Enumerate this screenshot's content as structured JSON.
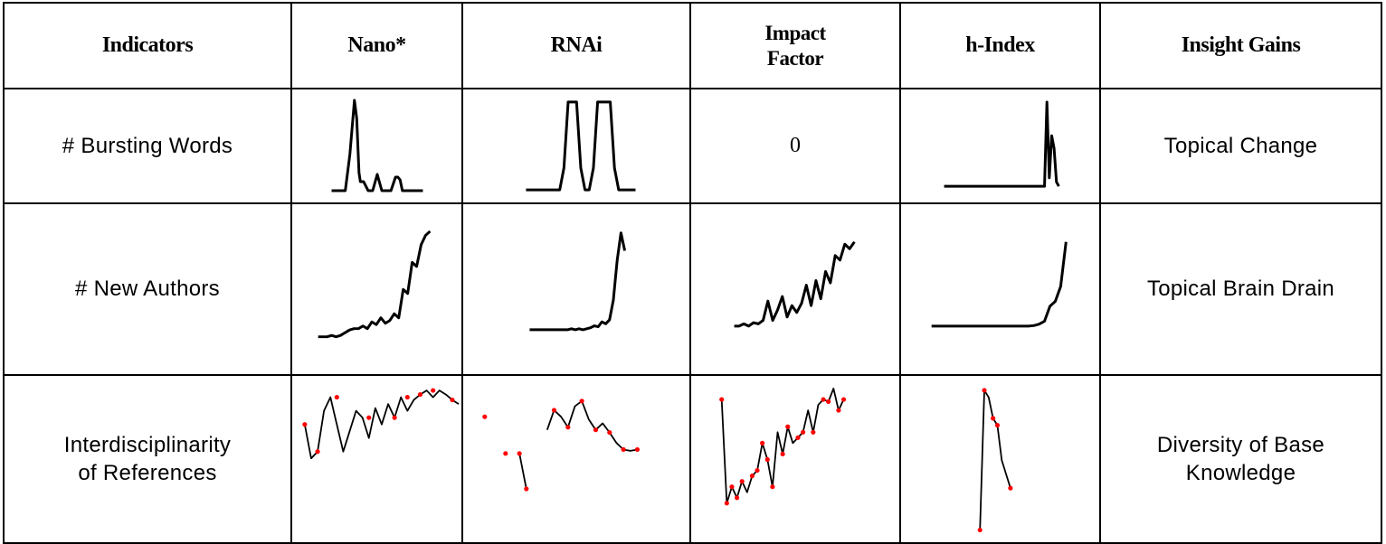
{
  "header": {
    "indicators": "Indicators",
    "nano": "Nano*",
    "rnai": "RNAi",
    "impact_line1": "Impact",
    "impact_line2": "Factor",
    "hindex": "h-Index",
    "insight": "Insight Gains"
  },
  "rows": {
    "bursting": {
      "label": "# Bursting Words",
      "impact_value": "0",
      "gain": "Topical Change"
    },
    "authors": {
      "label": "# New Authors",
      "gain": "Topical Brain Drain"
    },
    "refs": {
      "label_line1": "Interdisciplinarity",
      "label_line2": "of References",
      "gain_line1": "Diversity of Base",
      "gain_line2": "Knowledge"
    }
  },
  "colors": {
    "line": "#000000",
    "point": "#ff0000",
    "border": "#000000"
  },
  "sparklines": {
    "bursting_nano": {
      "x": [
        0,
        3,
        4,
        5,
        5.5,
        6,
        6.3,
        7,
        8,
        9,
        10,
        11,
        12,
        13,
        14,
        14.5,
        15,
        15.5,
        16,
        20
      ],
      "y": [
        0,
        0,
        40,
        100,
        80,
        20,
        10,
        10,
        0,
        0,
        18,
        0,
        0,
        0,
        15,
        15,
        12,
        0,
        0,
        0
      ]
    },
    "bursting_rnai": {
      "x": [
        0,
        8,
        9,
        10,
        11,
        12,
        13,
        14,
        15,
        16,
        17,
        18,
        19,
        20,
        21,
        22,
        23,
        26
      ],
      "y": [
        0,
        0,
        25,
        100,
        100,
        100,
        25,
        0,
        0,
        25,
        100,
        100,
        100,
        100,
        25,
        0,
        0,
        0
      ]
    },
    "bursting_hindex": {
      "x": [
        0,
        20,
        21,
        21.5,
        22,
        22.5,
        23,
        23.5,
        24
      ],
      "y": [
        0,
        0,
        0,
        100,
        10,
        60,
        45,
        5,
        0
      ]
    },
    "authors_nano": {
      "x": [
        0,
        1,
        2,
        3,
        4,
        5,
        6,
        7,
        8,
        9,
        10,
        11,
        12,
        13,
        14,
        15,
        16,
        17,
        18,
        19,
        20,
        21,
        22,
        23,
        24,
        25
      ],
      "y": [
        0,
        0,
        0,
        1,
        0,
        1,
        3,
        5,
        6,
        6,
        8,
        6,
        11,
        9,
        14,
        10,
        12,
        17,
        14,
        35,
        32,
        55,
        52,
        68,
        75,
        78
      ]
    },
    "authors_rnai": {
      "x": [
        0,
        1,
        2,
        3,
        4,
        5,
        6,
        7,
        8,
        9,
        10,
        11,
        12,
        13,
        14,
        15,
        16,
        17,
        18,
        19,
        20,
        21,
        22,
        23,
        24,
        25
      ],
      "y": [
        0,
        0,
        0,
        0,
        0,
        0,
        0,
        0,
        0,
        0,
        0,
        1,
        0,
        1,
        0,
        1,
        2,
        4,
        3,
        8,
        6,
        10,
        30,
        70,
        98,
        80
      ]
    },
    "authors_impact": {
      "x": [
        0,
        1,
        2,
        3,
        4,
        5,
        6,
        7,
        8,
        9,
        10,
        11,
        12,
        13,
        14,
        15,
        16,
        17,
        18,
        19,
        20,
        21,
        22,
        23,
        24,
        25
      ],
      "y": [
        0,
        0,
        2,
        0,
        3,
        2,
        5,
        22,
        5,
        14,
        26,
        8,
        18,
        12,
        20,
        36,
        18,
        40,
        24,
        48,
        38,
        62,
        58,
        72,
        68,
        74
      ]
    },
    "authors_hindex": {
      "x": [
        0,
        5,
        10,
        15,
        18,
        19,
        20,
        21,
        22,
        23,
        24,
        25
      ],
      "y": [
        0,
        0,
        0,
        0,
        0,
        0.5,
        2,
        5,
        20,
        25,
        40,
        85
      ]
    },
    "refs_nano": {
      "x": [
        0,
        1,
        2,
        3,
        4,
        5,
        6,
        7,
        8,
        9,
        10,
        11,
        12,
        13,
        14,
        15,
        16,
        17,
        18,
        19,
        20,
        21,
        22,
        23,
        24
      ],
      "y": [
        30,
        5,
        10,
        40,
        50,
        30,
        10,
        25,
        40,
        35,
        20,
        42,
        30,
        45,
        35,
        50,
        40,
        48,
        52,
        55,
        50,
        55,
        52,
        48,
        45
      ]
    },
    "refs_nano_points": {
      "x": [
        0,
        2,
        5,
        10,
        14,
        16,
        18,
        20,
        23
      ],
      "y": [
        30,
        10,
        50,
        35,
        35,
        50,
        52,
        55,
        48
      ]
    },
    "refs_rnai_segments": [
      {
        "x": [
          0
        ],
        "y": [
          50
        ]
      },
      {
        "x": [
          3
        ],
        "y": [
          22
        ]
      },
      {
        "x": [
          5,
          6
        ],
        "y": [
          22,
          -5
        ]
      },
      {
        "x": [
          9,
          10,
          11,
          12,
          13,
          14,
          15,
          16,
          17,
          18,
          19,
          20,
          21,
          22
        ],
        "y": [
          40,
          55,
          50,
          42,
          58,
          62,
          48,
          40,
          45,
          38,
          30,
          25,
          24,
          25
        ]
      }
    ],
    "refs_rnai_points": {
      "x": [
        0,
        3,
        5,
        6,
        10,
        12,
        14,
        16,
        18,
        20,
        22
      ],
      "y": [
        50,
        22,
        22,
        -5,
        55,
        42,
        62,
        40,
        38,
        25,
        25
      ]
    },
    "refs_impact": {
      "x": [
        0,
        1,
        2,
        3,
        4,
        5,
        6,
        7,
        8,
        9,
        10,
        11,
        12,
        13,
        14,
        15,
        16,
        17,
        18,
        19,
        20,
        21,
        22,
        23,
        24
      ],
      "y": [
        100,
        5,
        20,
        10,
        25,
        15,
        30,
        35,
        60,
        45,
        20,
        70,
        50,
        75,
        60,
        65,
        70,
        90,
        70,
        95,
        100,
        98,
        110,
        90,
        100
      ]
    },
    "refs_impact_points": {
      "x": [
        0,
        1,
        2,
        3,
        4,
        6,
        7,
        8,
        9,
        10,
        12,
        13,
        15,
        16,
        18,
        20,
        21,
        23,
        24
      ],
      "y": [
        100,
        5,
        20,
        10,
        25,
        30,
        35,
        60,
        45,
        20,
        50,
        75,
        65,
        70,
        70,
        100,
        98,
        90,
        100
      ]
    },
    "refs_hindex": {
      "x": [
        0,
        1,
        2,
        3,
        4,
        5,
        6,
        7
      ],
      "y": [
        0,
        100,
        95,
        80,
        75,
        50,
        40,
        30
      ]
    },
    "refs_hindex_points": {
      "x": [
        0,
        1,
        3,
        4,
        7
      ],
      "y": [
        0,
        100,
        80,
        75,
        30
      ]
    }
  }
}
